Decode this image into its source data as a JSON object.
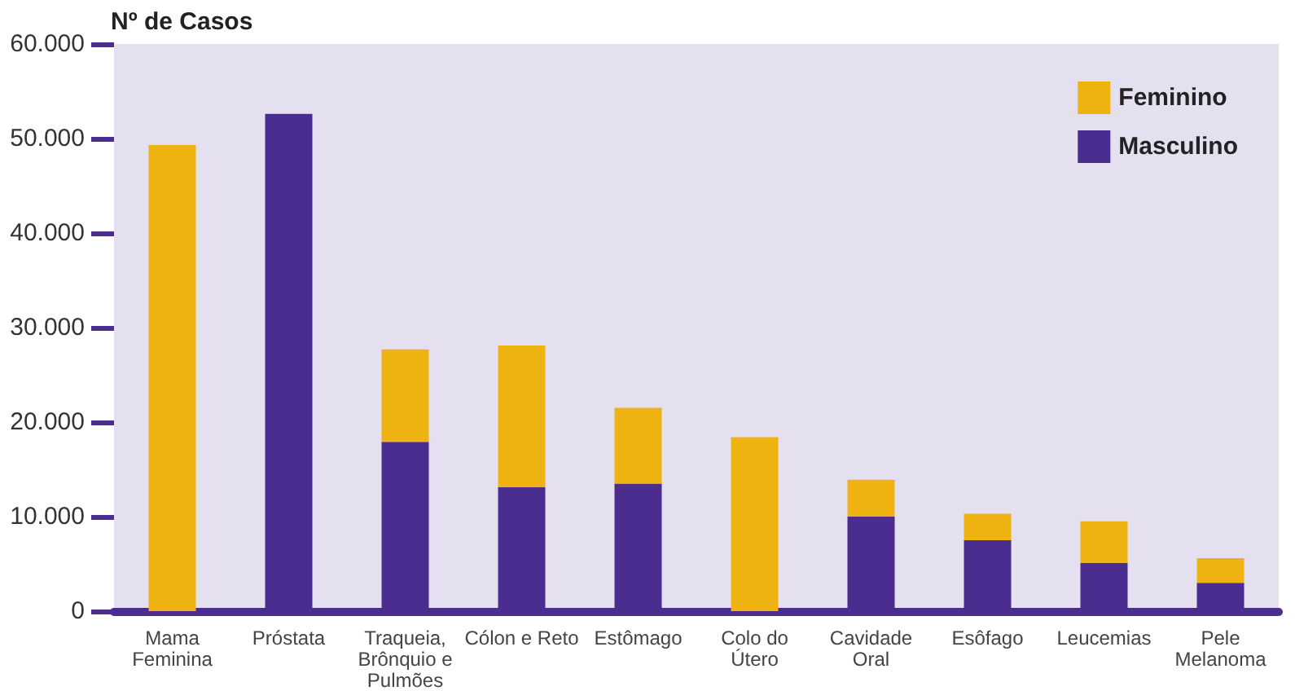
{
  "chart_data": {
    "type": "bar",
    "ylabel": "Nº de Casos",
    "categories": [
      "Mama\nFeminina",
      "Próstata",
      "Traqueia,\nBrônquio e\nPulmões",
      "Cólon e Reto",
      "Estômago",
      "Colo do\nÚtero",
      "Cavidade\nOral",
      "Esôfago",
      "Leucemias",
      "Pele\nMelanoma"
    ],
    "series": [
      {
        "name": "Masculino",
        "color": "#4a2d8f",
        "values": [
          null,
          52600,
          17900,
          13100,
          13500,
          null,
          10000,
          7500,
          5100,
          3000
        ]
      },
      {
        "name": "Feminino",
        "color": "#eeb211",
        "values": [
          49300,
          null,
          9800,
          15000,
          8000,
          18400,
          3900,
          2800,
          4400,
          2600
        ]
      }
    ],
    "stacked": true,
    "ylim": [
      0,
      60000
    ],
    "yticks": [
      0,
      {
        "value": 10000,
        "label": "10.000"
      },
      {
        "value": 20000,
        "label": "20.000"
      },
      {
        "value": 30000,
        "label": "30.000"
      },
      {
        "value": 40000,
        "label": "40.000"
      },
      {
        "value": 50000,
        "label": "50.000"
      },
      {
        "value": 60000,
        "label": "60.000"
      }
    ],
    "grid": false,
    "legend": "top right"
  }
}
